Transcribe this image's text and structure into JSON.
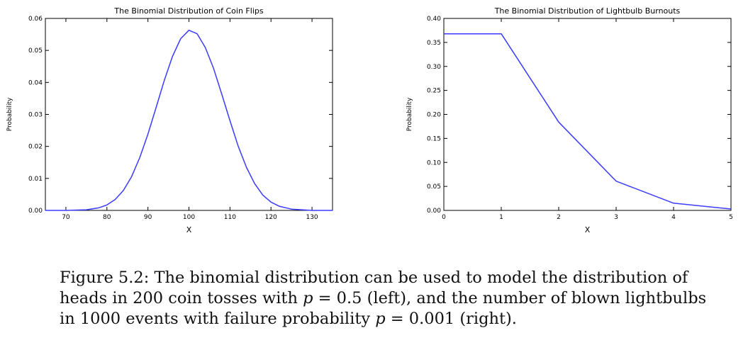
{
  "charts": [
    {
      "type": "line",
      "title": "The Binomial Distribution of Coin Flips",
      "xlabel": "X",
      "ylabel": "Probability",
      "xlim": [
        65,
        135
      ],
      "ylim": [
        0,
        0.06
      ],
      "xticks": [
        70,
        80,
        90,
        100,
        110,
        120,
        130
      ],
      "xtick_labels": [
        "70",
        "80",
        "90",
        "100",
        "110",
        "120",
        "130"
      ],
      "yticks": [
        0,
        0.01,
        0.02,
        0.03,
        0.04,
        0.05,
        0.06
      ],
      "ytick_labels": [
        "0.00",
        "0.01",
        "0.02",
        "0.03",
        "0.04",
        "0.05",
        "0.06"
      ],
      "line_color": "#3b3bff",
      "series": [
        {
          "x": [
            65,
            70,
            75,
            78,
            80,
            82,
            84,
            86,
            88,
            90,
            92,
            94,
            96,
            98,
            100,
            102,
            104,
            106,
            108,
            110,
            112,
            114,
            116,
            118,
            120,
            122,
            125,
            130,
            135
          ],
          "y": [
            0.0,
            0.0,
            0.0002,
            0.0008,
            0.0017,
            0.0034,
            0.0062,
            0.0105,
            0.0165,
            0.0238,
            0.0322,
            0.0407,
            0.0482,
            0.0537,
            0.0563,
            0.0552,
            0.0509,
            0.0444,
            0.0363,
            0.028,
            0.0201,
            0.0135,
            0.0084,
            0.0048,
            0.0026,
            0.0013,
            0.0004,
            0.0,
            0.0
          ]
        }
      ]
    },
    {
      "type": "line",
      "title": "The Binomial Distribution of Lightbulb Burnouts",
      "xlabel": "X",
      "ylabel": "Probability",
      "xlim": [
        0,
        5
      ],
      "ylim": [
        0,
        0.4
      ],
      "xticks": [
        0,
        1,
        2,
        3,
        4,
        5
      ],
      "xtick_labels": [
        "0",
        "1",
        "2",
        "3",
        "4",
        "5"
      ],
      "yticks": [
        0,
        0.05,
        0.1,
        0.15,
        0.2,
        0.25,
        0.3,
        0.35,
        0.4
      ],
      "ytick_labels": [
        "0.00",
        "0.05",
        "0.10",
        "0.15",
        "0.20",
        "0.25",
        "0.30",
        "0.35",
        "0.40"
      ],
      "line_color": "#3b3bff",
      "series": [
        {
          "x": [
            0,
            1,
            2,
            3,
            4,
            5
          ],
          "y": [
            0.368,
            0.368,
            0.184,
            0.061,
            0.015,
            0.003
          ]
        }
      ]
    }
  ],
  "caption": {
    "prefix": "Figure 5.2: The binomial distribution can be used to model the distribution of heads in 200 coin tosses with ",
    "var1": "p",
    "eq1": " = 0.5 (left), and the number of blown lightbulbs in 1000 events with failure probability ",
    "var2": "p",
    "eq2": " = 0.001 (right)."
  }
}
